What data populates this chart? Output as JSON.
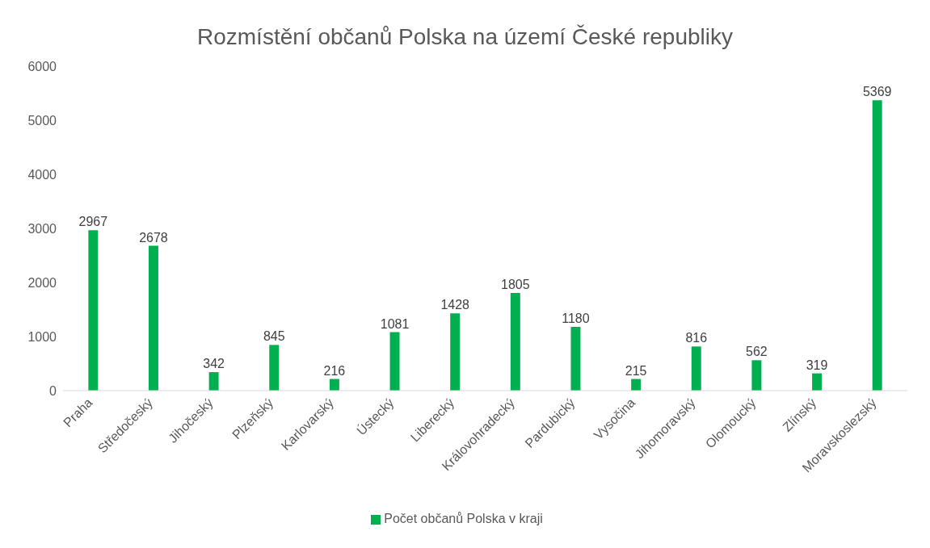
{
  "chart_data": {
    "type": "bar",
    "title": "Rozmístění občanů Polska na území České republiky",
    "categories": [
      "Praha",
      "Středočeský",
      "Jihočeský",
      "Plzeňský",
      "Karlovarský",
      "Ústecký",
      "Liberecký",
      "Královohradecký",
      "Pardubický",
      "Vysočina",
      "Jihomoravský",
      "Olomoucký",
      "Zlínský",
      "Moravskoslezský"
    ],
    "series": [
      {
        "name": "Počet občanů Polska v kraji",
        "color": "#00b050",
        "values": [
          2967,
          2678,
          342,
          845,
          216,
          1081,
          1428,
          1805,
          1180,
          215,
          816,
          562,
          319,
          5369
        ]
      }
    ],
    "ylim": [
      0,
      6000
    ],
    "yticks": [
      0,
      1000,
      2000,
      3000,
      4000,
      5000,
      6000
    ],
    "grid": false,
    "legend": "bottom",
    "data_labels": true
  }
}
